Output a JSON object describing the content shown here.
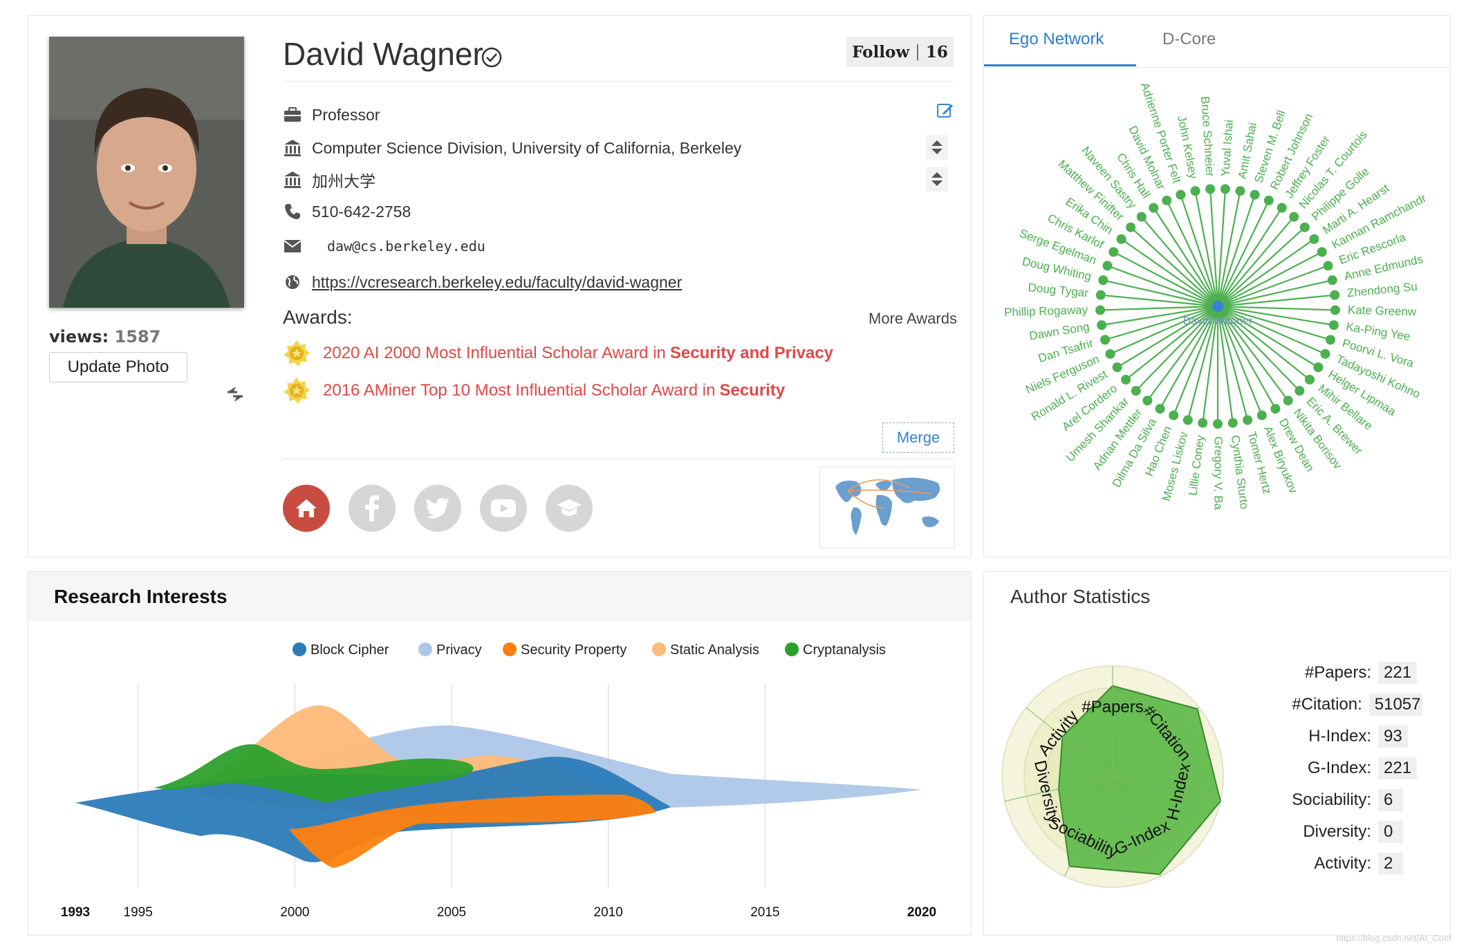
{
  "profile": {
    "name": "David Wagner",
    "views_label": "views:",
    "views_value": "1587",
    "update_photo": "Update Photo",
    "follow_label": "Follow",
    "follow_count": "16",
    "position": "Professor",
    "affiliation": "Computer Science Division, University of California, Berkeley",
    "affiliation_zh": "加州大学",
    "phone": "510-642-2758",
    "email": "daw@cs.berkeley.edu",
    "homepage": "https://vcresearch.berkeley.edu/faculty/david-wagner",
    "awards_title": "Awards:",
    "more_awards": "More Awards",
    "awards": [
      {
        "text": "2020 AI 2000 Most Influential Scholar Award in",
        "field": "Security and Privacy"
      },
      {
        "text": "2016 AMiner Top 10 Most Influential Scholar Award in",
        "field": "Security"
      }
    ],
    "merge": "Merge",
    "social_icons": [
      "home-icon",
      "facebook-icon",
      "twitter-icon",
      "youtube-icon",
      "scholar-icon"
    ]
  },
  "ego": {
    "tabs": [
      "Ego Network",
      "D-Core"
    ],
    "center": "David Wagner",
    "nodes": [
      "Yuval Ishai",
      "Amit Sahai",
      "Steven M. Bell",
      "Robert Johnson",
      "Jeffrey Foster",
      "Nicolas T. Courtois",
      "Philippe Golle",
      "Marti A. Hearst",
      "Kannan Ramchandr",
      "Eric Rescorla",
      "Anne Edmunds",
      "Zhendong Su",
      "Kate Greenw",
      "Ka-Ping Yee",
      "Poorvi L. Vora",
      "Tadayoshi Kohno",
      "Helger Lipmaa",
      "Mihir Bellare",
      "Eric A. Brewer",
      "Nikita Borisov",
      "Drew Dean",
      "Alex Biryukov",
      "Tomer Hertz",
      "Cynthia Sturto",
      "Gregory V. Ba",
      "Lillie Coney",
      "Moses Liskov",
      "Hao Chen",
      "Dilma Da Silva",
      "Adrian Mettler",
      "Umesh Shankar",
      "Arel Cordero",
      "Ronald L. Rivest",
      "Niels Ferguson",
      "Dan Tsafrir",
      "Dawn Song",
      "Phillip Rogaway",
      "Doug Tygar",
      "Doug Whiting",
      "Serge Egelman",
      "Chris Karlof",
      "Erika Chin",
      "Matthew Finifter",
      "Naveen Sastry",
      "Chris Hall",
      "David Molnar",
      "Adrienne Porter Felt",
      "John Kelsey",
      "Bruce Schneier"
    ],
    "color": "#4caf50"
  },
  "interests": {
    "title": "Research Interests",
    "chart_data": {
      "type": "area",
      "layout": "streamgraph",
      "x_ticks": [
        "1993",
        "1995",
        "2000",
        "2005",
        "2010",
        "2015",
        "2020"
      ],
      "x_range": [
        1993,
        2020
      ],
      "series": [
        {
          "name": "Block Cipher",
          "color": "#2b7bb9"
        },
        {
          "name": "Privacy",
          "color": "#aec7e8"
        },
        {
          "name": "Security Property",
          "color": "#ff7f0e"
        },
        {
          "name": "Static Analysis",
          "color": "#ffbb78"
        },
        {
          "name": "Cryptanalysis",
          "color": "#2ca02c"
        }
      ]
    }
  },
  "stats": {
    "title": "Author Statistics",
    "radar_axes": [
      "#Papers",
      "#Citation",
      "H-Index",
      "G-Index",
      "Sociability",
      "Diversity",
      "Activity"
    ],
    "rows": [
      {
        "label": "#Papers:",
        "value": "221"
      },
      {
        "label": "#Citation:",
        "value": "51057"
      },
      {
        "label": "H-Index:",
        "value": "93"
      },
      {
        "label": "G-Index:",
        "value": "221"
      },
      {
        "label": "Sociability:",
        "value": "6"
      },
      {
        "label": "Diversity:",
        "value": "0"
      },
      {
        "label": "Activity:",
        "value": "2"
      }
    ]
  },
  "watermark": "https://blog.csdn.net/AI_Conf"
}
